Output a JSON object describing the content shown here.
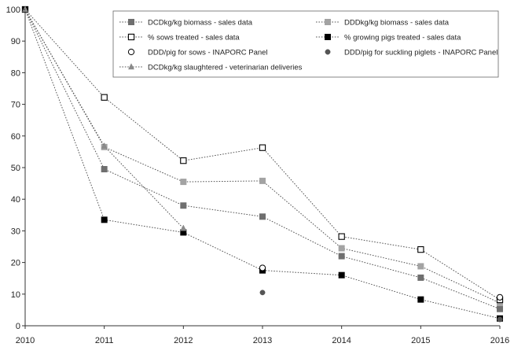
{
  "chart_data": {
    "type": "line",
    "title": "",
    "xlabel": "",
    "ylabel": "",
    "x": [
      2010,
      2011,
      2012,
      2013,
      2014,
      2015,
      2016
    ],
    "xlim": [
      2010,
      2016
    ],
    "ylim": [
      0,
      100
    ],
    "yticks": [
      0,
      10,
      20,
      30,
      40,
      50,
      60,
      70,
      80,
      90,
      100
    ],
    "xtick_labels": [
      "2010",
      "2011",
      "2012",
      "2013",
      "2014",
      "2015",
      "2016"
    ],
    "ytick_labels": [
      "0",
      "10",
      "20",
      "30",
      "40",
      "50",
      "60",
      "70",
      "80",
      "90",
      "100"
    ],
    "grid": false,
    "legend_position": "top-right",
    "series": [
      {
        "name": "DCDkg/kg biomass - sales data",
        "marker": "square-filled",
        "color": "#6f6f6f",
        "line": true,
        "points": [
          [
            2010,
            100
          ],
          [
            2011,
            49.5
          ],
          [
            2012,
            38
          ],
          [
            2013,
            34.5
          ],
          [
            2014,
            22
          ],
          [
            2015,
            15.2
          ],
          [
            2016,
            5.3
          ]
        ]
      },
      {
        "name": "DDDkg/kg biomass - sales data",
        "marker": "square-filled",
        "color": "#a3a3a3",
        "line": true,
        "points": [
          [
            2010,
            100
          ],
          [
            2011,
            56.5
          ],
          [
            2012,
            45.5
          ],
          [
            2013,
            45.8
          ],
          [
            2014,
            24.5
          ],
          [
            2015,
            18.8
          ],
          [
            2016,
            7.2
          ]
        ]
      },
      {
        "name": "% sows treated - sales data",
        "marker": "square-open",
        "color": "#000000",
        "line": true,
        "points": [
          [
            2010,
            100
          ],
          [
            2011,
            72.2
          ],
          [
            2012,
            52.2
          ],
          [
            2013,
            56.3
          ],
          [
            2014,
            28.2
          ],
          [
            2015,
            24.1
          ],
          [
            2016,
            8.2
          ]
        ]
      },
      {
        "name": "% growing pigs treated - sales data",
        "marker": "square-filled",
        "color": "#000000",
        "line": true,
        "points": [
          [
            2010,
            100
          ],
          [
            2011,
            33.5
          ],
          [
            2012,
            29.5
          ],
          [
            2013,
            17.5
          ],
          [
            2014,
            16
          ],
          [
            2015,
            8.3
          ],
          [
            2016,
            2.3
          ]
        ]
      },
      {
        "name": "DDD/pig for sows - INAPORC Panel",
        "marker": "circle-open",
        "color": "#000000",
        "line": false,
        "points": [
          [
            2013,
            18.3
          ],
          [
            2016,
            9
          ]
        ]
      },
      {
        "name": "DDD/pig for suckling piglets - INAPORC Panel",
        "marker": "circle-filled",
        "color": "#555555",
        "line": false,
        "points": [
          [
            2013,
            10.5
          ],
          [
            2016,
            2
          ]
        ]
      },
      {
        "name": "DCDkg/kg slaughtered - veterinarian deliveries",
        "marker": "triangle-filled",
        "color": "#8a8a8a",
        "line": true,
        "points": [
          [
            2010,
            100
          ],
          [
            2011,
            56.8
          ],
          [
            2012,
            30.8
          ]
        ]
      }
    ]
  }
}
